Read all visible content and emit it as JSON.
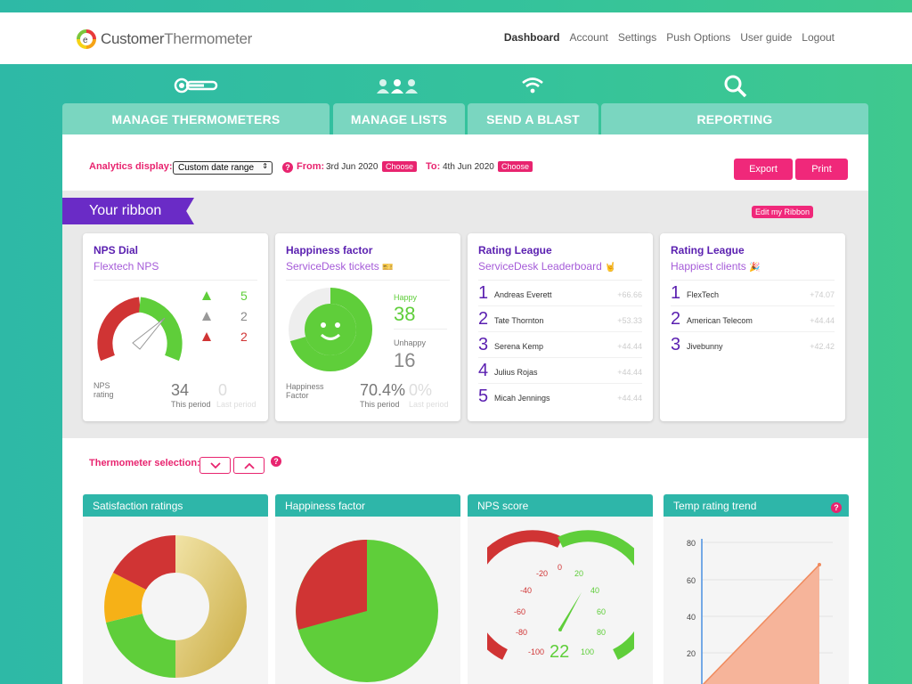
{
  "brand": {
    "name_part1": "Customer",
    "name_part2": "Thermometer"
  },
  "topnav": [
    {
      "label": "Dashboard",
      "active": true
    },
    {
      "label": "Account"
    },
    {
      "label": "Settings"
    },
    {
      "label": "Push Options"
    },
    {
      "label": "User guide"
    },
    {
      "label": "Logout"
    }
  ],
  "tabs": [
    {
      "label": "MANAGE THERMOMETERS",
      "icon": "thermometer-icon"
    },
    {
      "label": "MANAGE LISTS",
      "icon": "people-icon"
    },
    {
      "label": "SEND A BLAST",
      "icon": "wifi-icon"
    },
    {
      "label": "REPORTING",
      "icon": "search-icon"
    }
  ],
  "toolbar": {
    "analytics_label": "Analytics display:",
    "select_value": "Custom date range",
    "from_label": "From:",
    "from_date": "3rd Jun 2020",
    "to_label": "To:",
    "to_date": "4th Jun 2020",
    "choose_label": "Choose",
    "help_mark": "?",
    "export_label": "Export",
    "print_label": "Print"
  },
  "ribbon": {
    "title": "Your ribbon",
    "edit_label": "Edit my Ribbon"
  },
  "nps_card": {
    "title": "NPS Dial",
    "subtitle": "Flextech NPS",
    "up": "5",
    "neutral": "2",
    "down": "2",
    "rating_label_1": "NPS",
    "rating_label_2": "rating",
    "this_value": "34",
    "this_label": "This period",
    "last_value": "0",
    "last_label": "Last period"
  },
  "happy_card": {
    "title": "Happiness factor",
    "subtitle": "ServiceDesk tickets",
    "happy_label": "Happy",
    "happy_value": "38",
    "unhappy_label": "Unhappy",
    "unhappy_value": "16",
    "factor_label_1": "Happiness",
    "factor_label_2": "Factor",
    "this_value": "70.4%",
    "this_label": "This period",
    "last_value": "0%",
    "last_label": "Last period"
  },
  "league1": {
    "title": "Rating League",
    "subtitle": "ServiceDesk Leaderboard",
    "rows": [
      {
        "rank": "1",
        "name": "Andreas Everett",
        "score": "+66.66"
      },
      {
        "rank": "2",
        "name": "Tate Thornton",
        "score": "+53.33"
      },
      {
        "rank": "3",
        "name": "Serena Kemp",
        "score": "+44.44"
      },
      {
        "rank": "4",
        "name": "Julius Rojas",
        "score": "+44.44"
      },
      {
        "rank": "5",
        "name": "Micah Jennings",
        "score": "+44.44"
      }
    ]
  },
  "league2": {
    "title": "Rating League",
    "subtitle": "Happiest clients",
    "rows": [
      {
        "rank": "1",
        "name": "FlexTech",
        "score": "+74.07"
      },
      {
        "rank": "2",
        "name": "American Telecom",
        "score": "+44.44"
      },
      {
        "rank": "3",
        "name": "Jivebunny",
        "score": "+42.42"
      }
    ]
  },
  "thermo_selection": {
    "label": "Thermometer selection:",
    "help_mark": "?"
  },
  "bottom_cards": [
    {
      "title": "Satisfaction ratings"
    },
    {
      "title": "Happiness factor"
    },
    {
      "title": "NPS score",
      "value": "22"
    },
    {
      "title": "Temp rating trend",
      "help_mark": "?"
    }
  ],
  "gauge_labels": [
    "-100",
    "-80",
    "-60",
    "-40",
    "-20",
    "0",
    "20",
    "40",
    "60",
    "80",
    "100"
  ],
  "trend_y_ticks": [
    "80",
    "60",
    "40",
    "20"
  ],
  "colors": {
    "accent": "#e8246f",
    "purple": "#5a1fb0",
    "teal": "#2eb6a9",
    "green": "#5fce3a",
    "red": "#d03434"
  }
}
